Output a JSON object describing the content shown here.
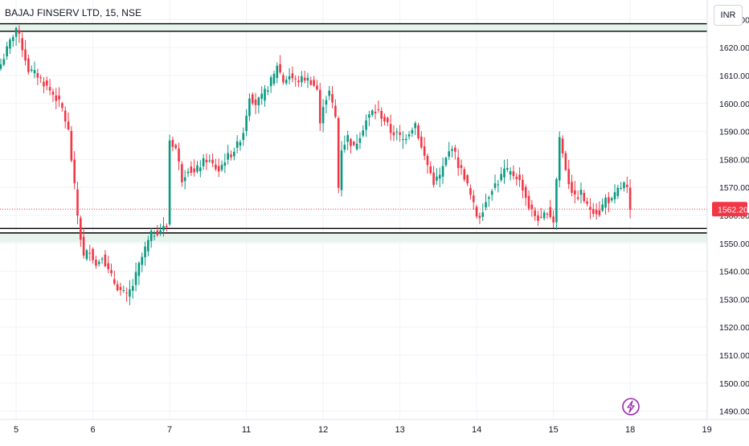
{
  "header": {
    "title": "BAJAJ FINSERV LTD, 15, NSE",
    "currency": "INR"
  },
  "chart_data": {
    "type": "candlestick",
    "title": "BAJAJ FINSERV LTD, 15, NSE",
    "currency": "INR",
    "last_price": "1562.20",
    "ylim": [
      1487,
      1637
    ],
    "y_ticks": [
      "1490.00",
      "1500.00",
      "1510.00",
      "1520.00",
      "1530.00",
      "1540.00",
      "1550.00",
      "1560.00",
      "1570.00",
      "1580.00",
      "1590.00",
      "1600.00",
      "1610.00",
      "1620.00",
      "1630.00"
    ],
    "y_values": [
      1490,
      1500,
      1510,
      1520,
      1530,
      1540,
      1550,
      1560,
      1570,
      1580,
      1590,
      1600,
      1610,
      1620,
      1630
    ],
    "x_ticks": [
      "5",
      "6",
      "7",
      "11",
      "12",
      "13",
      "14",
      "15",
      "18",
      "19"
    ],
    "x_tick_index": [
      5,
      30,
      55,
      80,
      105,
      130,
      155,
      180,
      205,
      230
    ],
    "horizontal_lines": [
      {
        "value": 1628.5,
        "color": "#000000"
      },
      {
        "value": 1625.8,
        "color": "#000000"
      },
      {
        "value": 1555.3,
        "color": "#000000"
      },
      {
        "value": 1553.7,
        "color": "#000000"
      }
    ],
    "zones": [
      {
        "from": 1625.8,
        "to": 1628.5,
        "color": "#e6f4ec"
      },
      {
        "from": 1550.4,
        "to": 1553.7,
        "color": "#e6f4ec"
      }
    ],
    "colors": {
      "up": "#089981",
      "down": "#f23645",
      "last_line": "#f23645",
      "grid": "#f0f3fa"
    },
    "lightning_icon": "lightning-icon",
    "anchors": [
      [
        0,
        1614
      ],
      [
        3,
        1622
      ],
      [
        5,
        1627
      ],
      [
        7,
        1620
      ],
      [
        9,
        1612
      ],
      [
        12,
        1610
      ],
      [
        15,
        1606
      ],
      [
        18,
        1602
      ],
      [
        20,
        1598
      ],
      [
        22,
        1590
      ],
      [
        24,
        1570
      ],
      [
        25,
        1560
      ],
      [
        26,
        1552
      ],
      [
        27,
        1545
      ],
      [
        29,
        1548
      ],
      [
        31,
        1542
      ],
      [
        33,
        1546
      ],
      [
        35,
        1540
      ],
      [
        37,
        1536
      ],
      [
        39,
        1533
      ],
      [
        41,
        1531
      ],
      [
        43,
        1535
      ],
      [
        45,
        1542
      ],
      [
        47,
        1548
      ],
      [
        49,
        1553
      ],
      [
        52,
        1555
      ],
      [
        54,
        1556
      ],
      [
        55,
        1587
      ],
      [
        57,
        1584
      ],
      [
        59,
        1573
      ],
      [
        61,
        1577
      ],
      [
        63,
        1575
      ],
      [
        65,
        1578
      ],
      [
        67,
        1580
      ],
      [
        69,
        1578
      ],
      [
        71,
        1576
      ],
      [
        73,
        1580
      ],
      [
        75,
        1582
      ],
      [
        77,
        1585
      ],
      [
        79,
        1590
      ],
      [
        81,
        1603
      ],
      [
        83,
        1600
      ],
      [
        85,
        1602
      ],
      [
        87,
        1606
      ],
      [
        89,
        1610
      ],
      [
        90,
        1614
      ],
      [
        92,
        1608
      ],
      [
        94,
        1610
      ],
      [
        96,
        1608
      ],
      [
        99,
        1609
      ],
      [
        101,
        1608
      ],
      [
        103,
        1605
      ],
      [
        104,
        1592
      ],
      [
        105,
        1600
      ],
      [
        107,
        1604
      ],
      [
        109,
        1595
      ],
      [
        110,
        1570
      ],
      [
        111,
        1584
      ],
      [
        113,
        1588
      ],
      [
        115,
        1584
      ],
      [
        117,
        1589
      ],
      [
        119,
        1594
      ],
      [
        121,
        1597
      ],
      [
        123,
        1597
      ],
      [
        125,
        1594
      ],
      [
        127,
        1590
      ],
      [
        129,
        1589
      ],
      [
        131,
        1587
      ],
      [
        133,
        1590
      ],
      [
        135,
        1593
      ],
      [
        137,
        1584
      ],
      [
        139,
        1578
      ],
      [
        141,
        1572
      ],
      [
        143,
        1574
      ],
      [
        145,
        1580
      ],
      [
        147,
        1585
      ],
      [
        149,
        1578
      ],
      [
        151,
        1574
      ],
      [
        153,
        1567
      ],
      [
        155,
        1560
      ],
      [
        156,
        1560
      ],
      [
        158,
        1565
      ],
      [
        160,
        1570
      ],
      [
        162,
        1572
      ],
      [
        164,
        1576
      ],
      [
        166,
        1575
      ],
      [
        168,
        1574
      ],
      [
        170,
        1570
      ],
      [
        172,
        1563
      ],
      [
        174,
        1560
      ],
      [
        176,
        1558
      ],
      [
        178,
        1562
      ],
      [
        180,
        1558
      ],
      [
        182,
        1588
      ],
      [
        183,
        1582
      ],
      [
        185,
        1572
      ],
      [
        187,
        1566
      ],
      [
        189,
        1568
      ],
      [
        191,
        1563
      ],
      [
        193,
        1562
      ],
      [
        195,
        1561
      ],
      [
        197,
        1566
      ],
      [
        199,
        1565
      ],
      [
        201,
        1569
      ],
      [
        203,
        1571
      ],
      [
        204,
        1569
      ],
      [
        205,
        1562
      ]
    ]
  }
}
